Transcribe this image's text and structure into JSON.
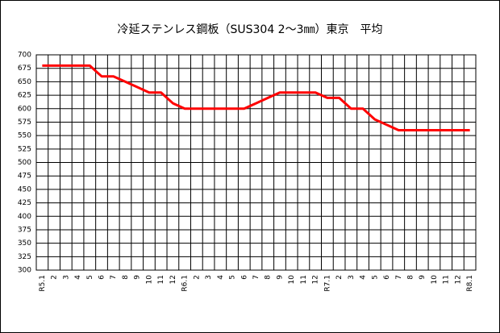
{
  "chart_data": {
    "type": "line",
    "title": "冷延ステンレス鋼板（SUS304 2～3㎜）東京　平均",
    "categories": [
      "R5.1",
      "2",
      "3",
      "4",
      "5",
      "6",
      "7",
      "8",
      "9",
      "10",
      "11",
      "12",
      "R6.1",
      "2",
      "3",
      "4",
      "5",
      "6",
      "7",
      "8",
      "9",
      "10",
      "11",
      "12",
      "R7.1",
      "2",
      "3",
      "4",
      "5",
      "6",
      "7",
      "8",
      "9",
      "10",
      "11",
      "12",
      "R8.1"
    ],
    "series": [
      {
        "color": "#ff0000",
        "values": [
          680,
          680,
          680,
          680,
          680,
          660,
          660,
          650,
          640,
          630,
          630,
          610,
          600,
          600,
          600,
          600,
          600,
          600,
          610,
          620,
          630,
          630,
          630,
          630,
          620,
          620,
          600,
          600,
          580,
          570,
          560,
          560,
          560,
          560,
          560,
          560,
          560
        ]
      }
    ],
    "ylim": [
      300,
      700
    ],
    "yticks": [
      300,
      325,
      350,
      375,
      400,
      425,
      450,
      475,
      500,
      525,
      550,
      575,
      600,
      625,
      650,
      675,
      700
    ],
    "grid": true
  }
}
